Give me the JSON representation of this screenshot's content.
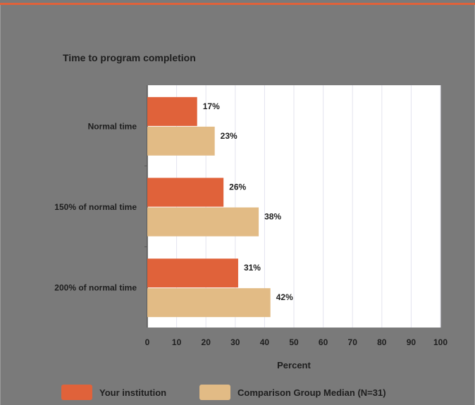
{
  "chart_data": {
    "type": "bar",
    "orientation": "horizontal",
    "title": "Time to program completion",
    "xlabel": "Percent",
    "xlim": [
      0,
      100
    ],
    "xticks": [
      0,
      10,
      20,
      30,
      40,
      50,
      60,
      70,
      80,
      90,
      100
    ],
    "categories": [
      "Normal time",
      "150% of normal time",
      "200% of normal time"
    ],
    "series": [
      {
        "name": "Your institution",
        "color": "#e0623a",
        "values": [
          17,
          26,
          31
        ]
      },
      {
        "name": "Comparison Group Median (N=31)",
        "color": "#e2bb85",
        "values": [
          23,
          38,
          42
        ]
      }
    ],
    "value_suffix": "%",
    "grid": true,
    "legend_position": "bottom"
  }
}
